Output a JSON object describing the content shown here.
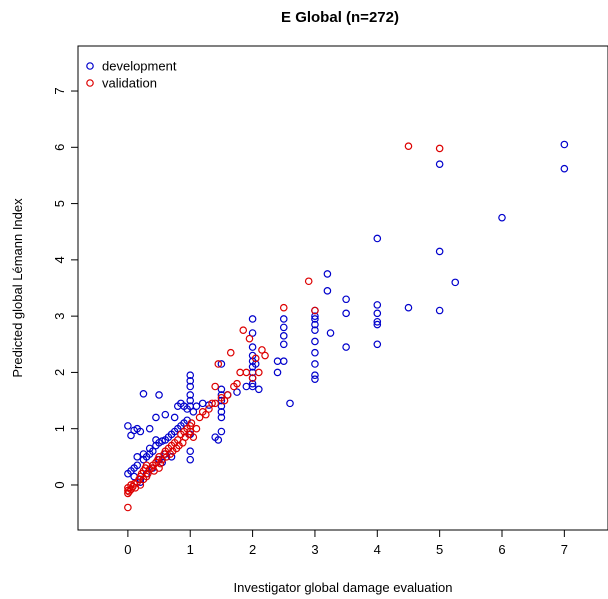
{
  "chart_data": {
    "type": "scatter",
    "title": "E Global (n=272)",
    "xlabel": "Investigator global damage evaluation",
    "ylabel": "Predicted global Lémann Index",
    "xlim": [
      -0.8,
      7.7
    ],
    "ylim": [
      -0.8,
      7.8
    ],
    "x_ticks": [
      0,
      1,
      2,
      3,
      4,
      5,
      6,
      7
    ],
    "y_ticks": [
      0,
      1,
      2,
      3,
      4,
      5,
      6,
      7
    ],
    "legend_position": "top-left",
    "grid": false,
    "series": [
      {
        "name": "development",
        "color": "#0000cc",
        "points": [
          [
            0.0,
            1.05
          ],
          [
            0.05,
            0.88
          ],
          [
            0.1,
            0.97
          ],
          [
            0.15,
            1.0
          ],
          [
            0.2,
            0.95
          ],
          [
            0.25,
            1.62
          ],
          [
            0.5,
            1.6
          ],
          [
            0.35,
            1.0
          ],
          [
            0.45,
            1.2
          ],
          [
            0.6,
            1.25
          ],
          [
            0.75,
            1.2
          ],
          [
            0.8,
            1.4
          ],
          [
            0.85,
            1.45
          ],
          [
            0.9,
            1.4
          ],
          [
            0.95,
            1.35
          ],
          [
            1.0,
            1.95
          ],
          [
            1.0,
            1.85
          ],
          [
            1.0,
            1.75
          ],
          [
            1.0,
            1.6
          ],
          [
            1.0,
            1.5
          ],
          [
            1.0,
            1.4
          ],
          [
            1.0,
            0.9
          ],
          [
            1.0,
            0.6
          ],
          [
            1.0,
            0.45
          ],
          [
            1.05,
            1.3
          ],
          [
            1.1,
            1.4
          ],
          [
            1.2,
            1.45
          ],
          [
            1.3,
            1.42
          ],
          [
            1.4,
            0.85
          ],
          [
            1.45,
            0.8
          ],
          [
            1.5,
            2.15
          ],
          [
            1.5,
            1.7
          ],
          [
            1.5,
            1.6
          ],
          [
            1.5,
            1.5
          ],
          [
            1.5,
            1.4
          ],
          [
            1.5,
            1.3
          ],
          [
            1.5,
            1.2
          ],
          [
            1.5,
            0.95
          ],
          [
            1.6,
            1.6
          ],
          [
            1.75,
            1.65
          ],
          [
            1.9,
            1.75
          ],
          [
            2.0,
            2.95
          ],
          [
            2.0,
            2.7
          ],
          [
            2.0,
            2.45
          ],
          [
            2.0,
            2.3
          ],
          [
            2.0,
            2.2
          ],
          [
            2.0,
            2.1
          ],
          [
            2.0,
            2.0
          ],
          [
            2.0,
            1.9
          ],
          [
            2.0,
            1.8
          ],
          [
            2.0,
            1.75
          ],
          [
            2.05,
            2.15
          ],
          [
            2.1,
            1.7
          ],
          [
            2.4,
            2.0
          ],
          [
            2.4,
            2.2
          ],
          [
            2.5,
            2.95
          ],
          [
            2.5,
            2.8
          ],
          [
            2.5,
            2.65
          ],
          [
            2.5,
            2.5
          ],
          [
            2.5,
            2.2
          ],
          [
            2.6,
            1.45
          ],
          [
            3.0,
            3.1
          ],
          [
            3.0,
            3.0
          ],
          [
            3.0,
            2.95
          ],
          [
            3.0,
            2.85
          ],
          [
            3.0,
            2.75
          ],
          [
            3.0,
            2.55
          ],
          [
            3.0,
            2.35
          ],
          [
            3.0,
            2.15
          ],
          [
            3.0,
            1.95
          ],
          [
            3.0,
            1.88
          ],
          [
            3.2,
            3.75
          ],
          [
            3.2,
            3.45
          ],
          [
            3.25,
            2.7
          ],
          [
            3.5,
            3.3
          ],
          [
            3.5,
            3.05
          ],
          [
            3.5,
            2.45
          ],
          [
            4.0,
            4.38
          ],
          [
            4.0,
            3.2
          ],
          [
            4.0,
            3.05
          ],
          [
            4.0,
            2.9
          ],
          [
            4.0,
            2.85
          ],
          [
            4.0,
            2.5
          ],
          [
            4.5,
            3.15
          ],
          [
            5.0,
            5.7
          ],
          [
            5.0,
            4.15
          ],
          [
            5.0,
            3.1
          ],
          [
            5.25,
            3.6
          ],
          [
            6.0,
            4.75
          ],
          [
            7.0,
            6.05
          ],
          [
            7.0,
            5.62
          ],
          [
            0.0,
            0.2
          ],
          [
            0.05,
            0.25
          ],
          [
            0.1,
            0.3
          ],
          [
            0.1,
            0.15
          ],
          [
            0.15,
            0.35
          ],
          [
            0.2,
            0.1
          ],
          [
            0.25,
            0.45
          ],
          [
            0.3,
            0.5
          ],
          [
            0.35,
            0.55
          ],
          [
            0.4,
            0.6
          ],
          [
            0.45,
            0.7
          ],
          [
            0.5,
            0.75
          ],
          [
            0.55,
            0.78
          ],
          [
            0.6,
            0.8
          ],
          [
            0.65,
            0.85
          ],
          [
            0.7,
            0.9
          ],
          [
            0.75,
            0.95
          ],
          [
            0.8,
            1.0
          ],
          [
            0.85,
            1.05
          ],
          [
            0.9,
            1.1
          ],
          [
            0.95,
            1.15
          ],
          [
            0.4,
            0.3
          ],
          [
            0.3,
            0.2
          ],
          [
            0.2,
            0.05
          ],
          [
            0.6,
            0.55
          ],
          [
            0.7,
            0.5
          ],
          [
            0.5,
            0.45
          ],
          [
            0.25,
            0.55
          ],
          [
            0.15,
            0.5
          ],
          [
            0.35,
            0.65
          ],
          [
            0.45,
            0.8
          ],
          [
            0.55,
            0.4
          ]
        ]
      },
      {
        "name": "validation",
        "color": "#dd0000",
        "points": [
          [
            0.0,
            -0.4
          ],
          [
            0.0,
            -0.15
          ],
          [
            0.0,
            -0.1
          ],
          [
            0.0,
            -0.05
          ],
          [
            0.02,
            -0.12
          ],
          [
            0.05,
            -0.08
          ],
          [
            0.05,
            0.0
          ],
          [
            0.08,
            -0.03
          ],
          [
            0.1,
            0.02
          ],
          [
            0.12,
            -0.05
          ],
          [
            0.15,
            0.05
          ],
          [
            0.18,
            0.1
          ],
          [
            0.2,
            0.0
          ],
          [
            0.2,
            0.15
          ],
          [
            0.22,
            0.2
          ],
          [
            0.25,
            0.1
          ],
          [
            0.25,
            0.25
          ],
          [
            0.28,
            0.3
          ],
          [
            0.3,
            0.15
          ],
          [
            0.3,
            0.35
          ],
          [
            0.32,
            0.2
          ],
          [
            0.35,
            0.28
          ],
          [
            0.38,
            0.3
          ],
          [
            0.4,
            0.35
          ],
          [
            0.42,
            0.25
          ],
          [
            0.45,
            0.4
          ],
          [
            0.48,
            0.45
          ],
          [
            0.5,
            0.3
          ],
          [
            0.5,
            0.5
          ],
          [
            0.52,
            0.38
          ],
          [
            0.55,
            0.45
          ],
          [
            0.58,
            0.55
          ],
          [
            0.6,
            0.6
          ],
          [
            0.62,
            0.5
          ],
          [
            0.65,
            0.65
          ],
          [
            0.68,
            0.55
          ],
          [
            0.7,
            0.7
          ],
          [
            0.72,
            0.6
          ],
          [
            0.75,
            0.75
          ],
          [
            0.78,
            0.65
          ],
          [
            0.8,
            0.8
          ],
          [
            0.82,
            0.7
          ],
          [
            0.85,
            0.9
          ],
          [
            0.88,
            0.75
          ],
          [
            0.9,
            0.95
          ],
          [
            0.92,
            0.85
          ],
          [
            0.95,
            1.0
          ],
          [
            0.98,
            0.9
          ],
          [
            1.0,
            1.05
          ],
          [
            1.0,
            0.95
          ],
          [
            1.02,
            1.1
          ],
          [
            1.05,
            0.85
          ],
          [
            1.1,
            1.0
          ],
          [
            1.15,
            1.2
          ],
          [
            1.2,
            1.3
          ],
          [
            1.25,
            1.25
          ],
          [
            1.3,
            1.35
          ],
          [
            1.35,
            1.45
          ],
          [
            1.4,
            1.45
          ],
          [
            1.4,
            1.75
          ],
          [
            1.45,
            2.15
          ],
          [
            1.5,
            1.55
          ],
          [
            1.55,
            1.5
          ],
          [
            1.6,
            1.6
          ],
          [
            1.65,
            2.35
          ],
          [
            1.7,
            1.75
          ],
          [
            1.75,
            1.8
          ],
          [
            1.8,
            2.0
          ],
          [
            1.85,
            2.75
          ],
          [
            1.9,
            2.0
          ],
          [
            1.95,
            2.6
          ],
          [
            2.0,
            1.9
          ],
          [
            2.05,
            2.25
          ],
          [
            2.1,
            2.0
          ],
          [
            2.15,
            2.4
          ],
          [
            2.2,
            2.3
          ],
          [
            2.5,
            3.15
          ],
          [
            2.9,
            3.62
          ],
          [
            3.0,
            3.1
          ],
          [
            4.5,
            6.02
          ],
          [
            5.0,
            5.98
          ]
        ]
      }
    ]
  }
}
